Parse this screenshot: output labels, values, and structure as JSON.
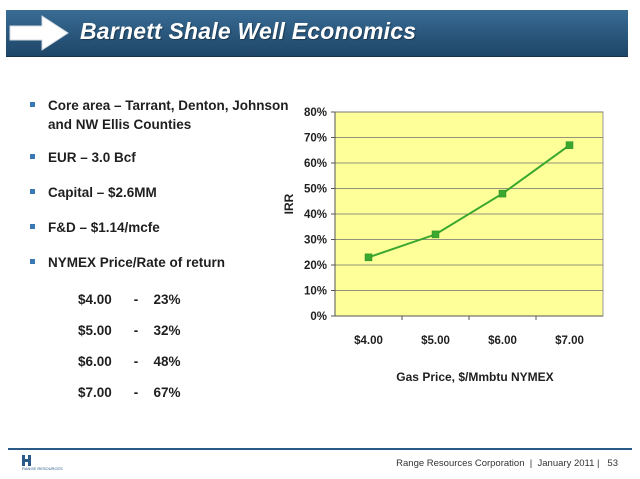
{
  "slide": {
    "title": "Barnett Shale Well Economics"
  },
  "bullets": [
    {
      "text": "Core area – Tarrant, Denton, Johnson and NW Ellis Counties"
    },
    {
      "text": "EUR – 3.0 Bcf"
    },
    {
      "text": "Capital – $2.6MM"
    },
    {
      "text": "F&D – $1.14/mcfe"
    },
    {
      "text": "NYMEX Price/Rate of return"
    }
  ],
  "price_rows": [
    {
      "price": "$4.00",
      "sep": "-",
      "rate": "23%"
    },
    {
      "price": "$5.00",
      "sep": "-",
      "rate": "32%"
    },
    {
      "price": "$6.00",
      "sep": "-",
      "rate": "48%"
    },
    {
      "price": "$7.00",
      "sep": "-",
      "rate": "67%"
    }
  ],
  "chart_data": {
    "type": "line",
    "categories": [
      "$4.00",
      "$5.00",
      "$6.00",
      "$7.00"
    ],
    "series": [
      {
        "values": [
          23,
          32,
          48,
          67
        ]
      }
    ],
    "xlabel": "Gas Price, $/Mmbtu NYMEX",
    "ylabel": "IRR",
    "ylim": [
      0,
      80
    ],
    "yticks": [
      0,
      10,
      20,
      30,
      40,
      50,
      60,
      70,
      80
    ],
    "ytick_labels": [
      "0%",
      "10%",
      "20%",
      "30%",
      "40%",
      "50%",
      "60%",
      "70%",
      "80%"
    ],
    "grid": true,
    "plot_background": "#ffff99",
    "line_color": "#3aa82e",
    "marker_color": "#3aa82e"
  },
  "footer": {
    "company": "Range Resources Corporation",
    "sep": "|",
    "date": "January 2011",
    "page": "53"
  },
  "logo": {
    "icon": "range-resources-logo",
    "text": "RANGE RESOURCES"
  }
}
